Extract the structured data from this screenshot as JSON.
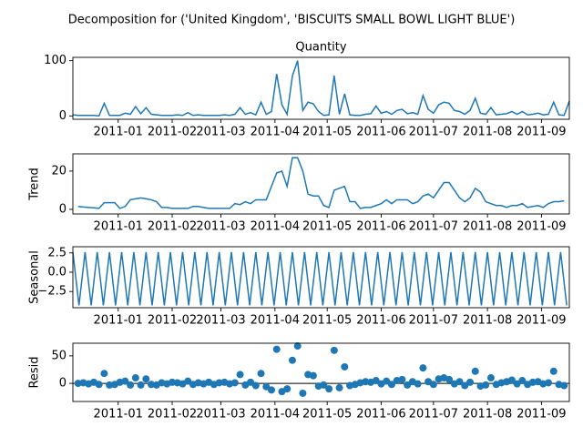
{
  "title": "Decomposition for ('United Kingdom', 'BISCUITS SMALL BOWL LIGHT BLUE')",
  "chart_data": [
    {
      "type": "line",
      "title": "Quantity",
      "color": "#1f77b4",
      "x": [
        0,
        3,
        6,
        9,
        12,
        15,
        18,
        21,
        24,
        27,
        30,
        33,
        36,
        39,
        42,
        45,
        48,
        51,
        54,
        57,
        60,
        63,
        66,
        69,
        72,
        75,
        78,
        81,
        84,
        87,
        90,
        93,
        96,
        99,
        102,
        105,
        108,
        111,
        114,
        117,
        120,
        123,
        126,
        129,
        132,
        135,
        138,
        141,
        144,
        147,
        150,
        153,
        156,
        159,
        162,
        165,
        168,
        171,
        174,
        177,
        180,
        183,
        186,
        189,
        192,
        195,
        198,
        201,
        204,
        207,
        210,
        213,
        216,
        219,
        222,
        225,
        228,
        231,
        234,
        237,
        240,
        243,
        246,
        249,
        252,
        255,
        258,
        261,
        264,
        267,
        270,
        273,
        276,
        279,
        282,
        285
      ],
      "values": [
        2,
        1,
        1,
        1,
        1,
        0,
        23,
        1,
        1,
        1,
        5,
        3,
        17,
        4,
        15,
        3,
        2,
        1,
        1,
        1,
        2,
        1,
        6,
        1,
        2,
        1,
        1,
        1,
        1,
        2,
        1,
        3,
        15,
        3,
        6,
        2,
        25,
        3,
        8,
        76,
        20,
        3,
        72,
        100,
        10,
        25,
        22,
        8,
        1,
        2,
        73,
        3,
        40,
        2,
        1,
        1,
        3,
        4,
        18,
        5,
        8,
        3,
        10,
        12,
        4,
        6,
        3,
        37,
        12,
        5,
        20,
        25,
        23,
        10,
        8,
        3,
        10,
        32,
        5,
        3,
        15,
        2,
        3,
        4,
        8,
        3,
        8,
        2,
        3,
        5,
        2,
        3,
        25,
        2,
        1,
        27
      ],
      "xlim": [
        0,
        285
      ],
      "ylim": [
        -6,
        106
      ],
      "yticks": [
        0,
        100
      ],
      "xticks": [
        {
          "value": 26,
          "label": "2011-01"
        },
        {
          "value": 57,
          "label": "2011-02"
        },
        {
          "value": 85,
          "label": "2011-03"
        },
        {
          "value": 116,
          "label": "2011-04"
        },
        {
          "value": 146,
          "label": "2011-05"
        },
        {
          "value": 177,
          "label": "2011-06"
        },
        {
          "value": 207,
          "label": "2011-07"
        },
        {
          "value": 238,
          "label": "2011-08"
        },
        {
          "value": 269,
          "label": "2011-09"
        }
      ]
    },
    {
      "type": "line",
      "ylabel": "Trend",
      "color": "#1f77b4",
      "x": [
        0,
        3,
        6,
        9,
        12,
        15,
        18,
        21,
        24,
        27,
        30,
        33,
        36,
        39,
        42,
        45,
        48,
        51,
        54,
        57,
        60,
        63,
        66,
        69,
        72,
        75,
        78,
        81,
        84,
        87,
        90,
        93,
        96,
        99,
        102,
        105,
        108,
        111,
        114,
        117,
        120,
        123,
        126,
        129,
        132,
        135,
        138,
        141,
        144,
        147,
        150,
        153,
        156,
        159,
        162,
        165,
        168,
        171,
        174,
        177,
        180,
        183,
        186,
        189,
        192,
        195,
        198,
        201,
        204,
        207,
        210,
        213,
        216,
        219,
        222,
        225,
        228,
        231,
        234,
        237,
        240,
        243,
        246,
        249,
        252,
        255,
        258,
        261,
        264,
        267,
        270,
        273,
        276,
        279,
        282,
        285
      ],
      "values": [
        null,
        1.5,
        1.2,
        1,
        0.8,
        0.5,
        3.5,
        3.5,
        3.5,
        0.5,
        1.5,
        5,
        5.5,
        6,
        5.5,
        5,
        4,
        1,
        1,
        0.5,
        0.5,
        0.5,
        0.5,
        1.5,
        1.5,
        1,
        0.5,
        0.5,
        0.5,
        0.5,
        0.5,
        3,
        2.5,
        4,
        3,
        5,
        5,
        5,
        12,
        19,
        20,
        12,
        27,
        27,
        20,
        8,
        7,
        7,
        2,
        1,
        10,
        11,
        12,
        4,
        4,
        0.5,
        1,
        1,
        2,
        3,
        5,
        3,
        5,
        5,
        5,
        3,
        4,
        7,
        8,
        6,
        10,
        14,
        14,
        10,
        6,
        4,
        6,
        11,
        9,
        4,
        3,
        2,
        2,
        1,
        2,
        2,
        3,
        1,
        1.5,
        2,
        1,
        3,
        4,
        4,
        4.5,
        null
      ],
      "xlim": [
        0,
        285
      ],
      "ylim": [
        -2.4,
        29
      ],
      "yticks": [
        0,
        20
      ],
      "xticks": [
        {
          "value": 26,
          "label": "2011-01"
        },
        {
          "value": 57,
          "label": "2011-02"
        },
        {
          "value": 85,
          "label": "2011-03"
        },
        {
          "value": 116,
          "label": "2011-04"
        },
        {
          "value": 146,
          "label": "2011-05"
        },
        {
          "value": 177,
          "label": "2011-06"
        },
        {
          "value": 207,
          "label": "2011-07"
        },
        {
          "value": 238,
          "label": "2011-08"
        },
        {
          "value": 269,
          "label": "2011-09"
        }
      ]
    },
    {
      "type": "line",
      "ylabel": "Seasonal",
      "color": "#1f77b4",
      "x": [
        0,
        3.5,
        7,
        10.5,
        14,
        17.5,
        21,
        24.5,
        28,
        31.5,
        35,
        38.5,
        42,
        45.5,
        49,
        52.5,
        56,
        59.5,
        63,
        66.5,
        70,
        73.5,
        77,
        80.5,
        84,
        87.5,
        91,
        94.5,
        98,
        101.5,
        105,
        108.5,
        112,
        115.5,
        119,
        122.5,
        126,
        129.5,
        133,
        136.5,
        140,
        143.5,
        147,
        150.5,
        154,
        157.5,
        161,
        164.5,
        168,
        171.5,
        175,
        178.5,
        182,
        185.5,
        189,
        192.5,
        196,
        199.5,
        203,
        206.5,
        210,
        213.5,
        217,
        220.5,
        224,
        227.5,
        231,
        234.5,
        238,
        241.5,
        245,
        248.5,
        252,
        255.5,
        259,
        262.5,
        266,
        269.5,
        273,
        276.5,
        280,
        283.5
      ],
      "values": [
        2.6,
        -4.3,
        2.6,
        -4.3,
        2.6,
        -4.3,
        2.6,
        -4.3,
        2.6,
        -4.3,
        2.6,
        -4.3,
        2.6,
        -4.3,
        2.6,
        -4.3,
        2.6,
        -4.3,
        2.6,
        -4.3,
        2.6,
        -4.3,
        2.6,
        -4.3,
        2.6,
        -4.3,
        2.6,
        -4.3,
        2.6,
        -4.3,
        2.6,
        -4.3,
        2.6,
        -4.3,
        2.6,
        -4.3,
        2.6,
        -4.3,
        2.6,
        -4.3,
        2.6,
        -4.3,
        2.6,
        -4.3,
        2.6,
        -4.3,
        2.6,
        -4.3,
        2.6,
        -4.3,
        2.6,
        -4.3,
        2.6,
        -4.3,
        2.6,
        -4.3,
        2.6,
        -4.3,
        2.6,
        -4.3,
        2.6,
        -4.3,
        2.6,
        -4.3,
        2.6,
        -4.3,
        2.6,
        -4.3,
        2.6,
        -4.3,
        2.6,
        -4.3,
        2.6,
        -4.3,
        2.6,
        -4.3,
        2.6,
        -4.3,
        2.6,
        -4.3,
        2.6,
        -4.3
      ],
      "xlim": [
        0,
        285
      ],
      "ylim": [
        -4.6,
        3.3
      ],
      "yticks": [
        {
          "value": -2.5,
          "label": "−2.5"
        },
        {
          "value": 0,
          "label": "0.0"
        },
        2.5
      ],
      "xticks": [
        {
          "value": 26,
          "label": "2011-01"
        },
        {
          "value": 57,
          "label": "2011-02"
        },
        {
          "value": 85,
          "label": "2011-03"
        },
        {
          "value": 116,
          "label": "2011-04"
        },
        {
          "value": 146,
          "label": "2011-05"
        },
        {
          "value": 177,
          "label": "2011-06"
        },
        {
          "value": 207,
          "label": "2011-07"
        },
        {
          "value": 238,
          "label": "2011-08"
        },
        {
          "value": 269,
          "label": "2011-09"
        }
      ]
    },
    {
      "type": "scatter",
      "ylabel": "Resid",
      "color": "#1f77b4",
      "x": [
        0,
        3,
        6,
        9,
        12,
        15,
        18,
        21,
        24,
        27,
        30,
        33,
        36,
        39,
        42,
        45,
        48,
        51,
        54,
        57,
        60,
        63,
        66,
        69,
        72,
        75,
        78,
        81,
        84,
        87,
        90,
        93,
        96,
        99,
        102,
        105,
        108,
        111,
        114,
        117,
        120,
        123,
        126,
        129,
        132,
        135,
        138,
        141,
        144,
        147,
        150,
        153,
        156,
        159,
        162,
        165,
        168,
        171,
        174,
        177,
        180,
        183,
        186,
        189,
        192,
        195,
        198,
        201,
        204,
        207,
        210,
        213,
        216,
        219,
        222,
        225,
        228,
        231,
        234,
        237,
        240,
        243,
        246,
        249,
        252,
        255,
        258,
        261,
        264,
        267,
        270,
        273,
        276,
        279,
        282,
        285
      ],
      "values": [
        null,
        0,
        1,
        -1,
        2,
        -2,
        18,
        -3,
        -2,
        2,
        4,
        -3,
        10,
        -3,
        8,
        -2,
        -3,
        1,
        -1,
        2,
        1,
        -1,
        4,
        -2,
        1,
        -1,
        2,
        -2,
        1,
        2,
        -1,
        1,
        16,
        -3,
        2,
        -4,
        18,
        -6,
        -12,
        62,
        -15,
        -10,
        42,
        68,
        -18,
        16,
        14,
        -5,
        -3,
        -10,
        60,
        -8,
        30,
        -4,
        -2,
        1,
        3,
        2,
        5,
        -1,
        4,
        -2,
        5,
        7,
        -3,
        3,
        -1,
        28,
        3,
        -2,
        8,
        10,
        7,
        -1,
        3,
        -4,
        2,
        22,
        -5,
        -3,
        10,
        -2,
        1,
        3,
        6,
        -1,
        5,
        -2,
        2,
        3,
        -1,
        1,
        22,
        -2,
        -4,
        null
      ],
      "xlim": [
        0,
        285
      ],
      "ylim": [
        -33,
        73
      ],
      "yticks": [
        0,
        50
      ],
      "xticks": [
        {
          "value": 26,
          "label": "2011-01"
        },
        {
          "value": 57,
          "label": "2011-02"
        },
        {
          "value": 85,
          "label": "2011-03"
        },
        {
          "value": 116,
          "label": "2011-04"
        },
        {
          "value": 146,
          "label": "2011-05"
        },
        {
          "value": 177,
          "label": "2011-06"
        },
        {
          "value": 207,
          "label": "2011-07"
        },
        {
          "value": 238,
          "label": "2011-08"
        },
        {
          "value": 269,
          "label": "2011-09"
        }
      ]
    }
  ]
}
